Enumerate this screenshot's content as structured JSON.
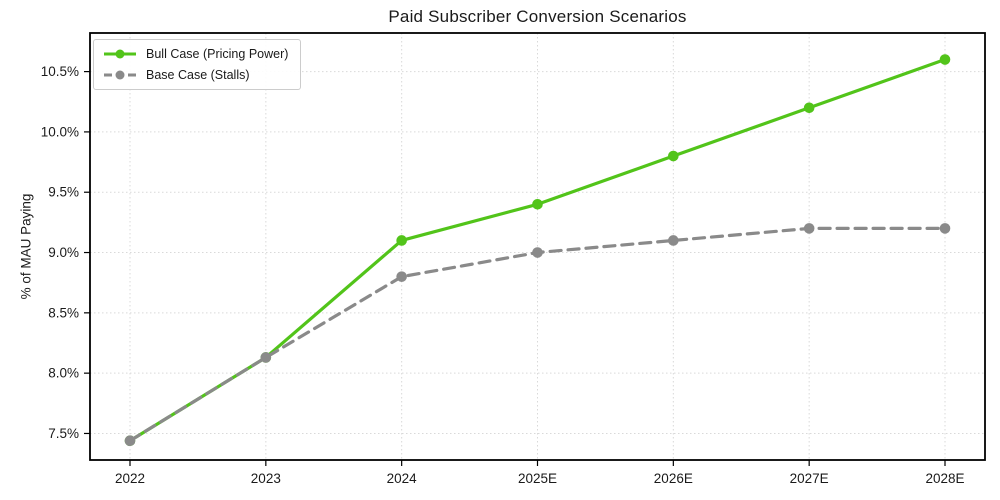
{
  "chart_data": {
    "type": "line",
    "title": "Paid Subscriber Conversion Scenarios",
    "xlabel": "",
    "ylabel": "% of MAU Paying",
    "categories": [
      "2022",
      "2023",
      "2024",
      "2025E",
      "2026E",
      "2027E",
      "2028E"
    ],
    "series": [
      {
        "name": "Bull Case (Pricing Power)",
        "values": [
          7.44,
          8.13,
          9.1,
          9.4,
          9.8,
          10.2,
          10.6
        ],
        "color": "#52c41a",
        "line_style": "solid",
        "marker": "circle"
      },
      {
        "name": "Base Case (Stalls)",
        "values": [
          7.44,
          8.13,
          8.8,
          9.0,
          9.1,
          9.2,
          9.2
        ],
        "color": "#8a8a8a",
        "line_style": "dashed",
        "marker": "circle"
      }
    ],
    "yticks": [
      7.5,
      8.0,
      8.5,
      9.0,
      9.5,
      10.0,
      10.5
    ],
    "ytick_suffix": "%",
    "ylim": [
      7.28,
      10.82
    ],
    "grid": true,
    "grid_style": "dotted",
    "grid_color": "#d9d9d9",
    "spine_color": "#000000",
    "tick_label_color": "#1a1a1a",
    "legend_position": "upper-left"
  }
}
